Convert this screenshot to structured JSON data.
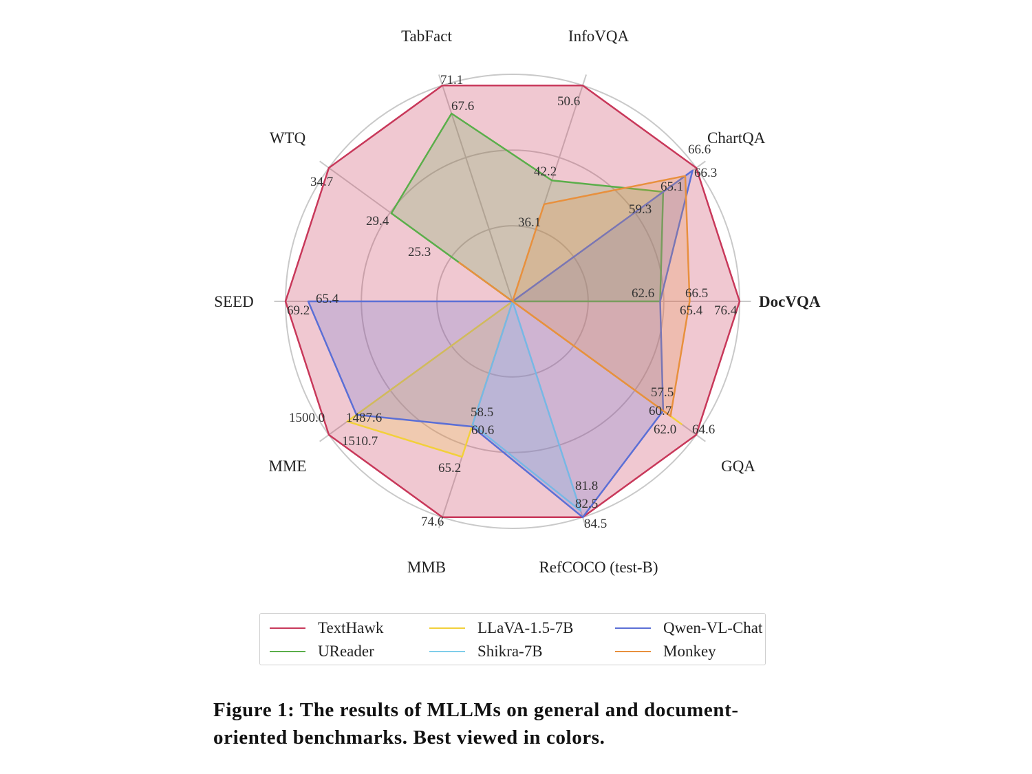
{
  "chart_data": {
    "type": "radar",
    "axes": [
      "DocVQA",
      "ChartQA",
      "InfoVQA",
      "TabFact",
      "WTQ",
      "SEED",
      "MME",
      "MMB",
      "RefCOCO (test-B)",
      "GQA"
    ],
    "series": [
      {
        "name": "TextHawk",
        "color": "#c8385a",
        "values": [
          76.4,
          66.6,
          50.6,
          71.1,
          34.7,
          69.2,
          1500.0,
          74.6,
          84.5,
          64.6
        ],
        "labels": [
          "76.4",
          "66.6",
          "50.6",
          "71.1",
          "34.7",
          "69.2",
          "1500.0",
          "74.6",
          "84.5",
          "64.6"
        ],
        "r": [
          1.0,
          1.0,
          1.0,
          1.0,
          1.0,
          1.0,
          1.0,
          1.0,
          1.0,
          1.0
        ]
      },
      {
        "name": "UReader",
        "color": "#5aae4a",
        "values": [
          65.4,
          59.3,
          42.2,
          67.6,
          29.4,
          null,
          null,
          null,
          null,
          null
        ],
        "labels": [
          "65.4",
          "59.3",
          "42.2",
          "67.6",
          "29.4",
          "",
          "",
          "",
          "",
          ""
        ],
        "r": [
          0.65,
          0.82,
          0.56,
          0.87,
          0.66,
          0,
          0,
          0,
          0,
          0
        ]
      },
      {
        "name": "LLaVA-1.5-7B",
        "color": "#f2d03a",
        "values": [
          null,
          null,
          null,
          null,
          null,
          null,
          1510.7,
          65.2,
          null,
          62.0
        ],
        "labels": [
          "",
          "",
          "",
          "",
          "",
          "",
          "1510.7",
          "65.2",
          "",
          "62.0"
        ],
        "r": [
          0,
          0,
          0,
          0,
          0,
          0,
          0.9,
          0.72,
          0,
          0.92
        ]
      },
      {
        "name": "Shikra-7B",
        "color": "#7fcdea",
        "values": [
          null,
          null,
          null,
          null,
          null,
          null,
          null,
          58.5,
          82.5,
          null
        ],
        "labels": [
          "",
          "",
          "",
          "",
          "",
          "",
          "",
          "58.5",
          "82.5",
          ""
        ],
        "r": [
          0,
          0,
          0,
          0,
          0,
          0,
          0,
          0.57,
          0.97,
          0
        ]
      },
      {
        "name": "Qwen-VL-Chat",
        "color": "#5b6fd6",
        "values": [
          62.6,
          66.3,
          null,
          null,
          null,
          65.4,
          1487.6,
          60.6,
          81.8,
          57.5
        ],
        "labels": [
          "62.6",
          "66.3",
          "",
          "",
          "",
          "65.4",
          "1487.6",
          "60.6",
          "81.8",
          "57.5"
        ],
        "r": [
          0.65,
          0.98,
          0,
          0,
          0,
          0.9,
          0.85,
          0.58,
          1.0,
          0.82
        ]
      },
      {
        "name": "Monkey",
        "color": "#e8903d",
        "values": [
          66.5,
          65.1,
          36.1,
          null,
          25.3,
          null,
          null,
          null,
          null,
          60.7
        ],
        "labels": [
          "66.5",
          "65.1",
          "36.1",
          "",
          "25.3",
          "",
          "",
          "",
          "",
          "60.7"
        ],
        "r": [
          0.78,
          0.94,
          0.45,
          0,
          0.29,
          0,
          0,
          0,
          0,
          0.86
        ]
      }
    ],
    "legend_position": "bottom",
    "grid": true
  },
  "caption": {
    "line1": "Figure 1: The results of MLLMs on general and document-",
    "line2": "oriented benchmarks. Best viewed in colors."
  }
}
